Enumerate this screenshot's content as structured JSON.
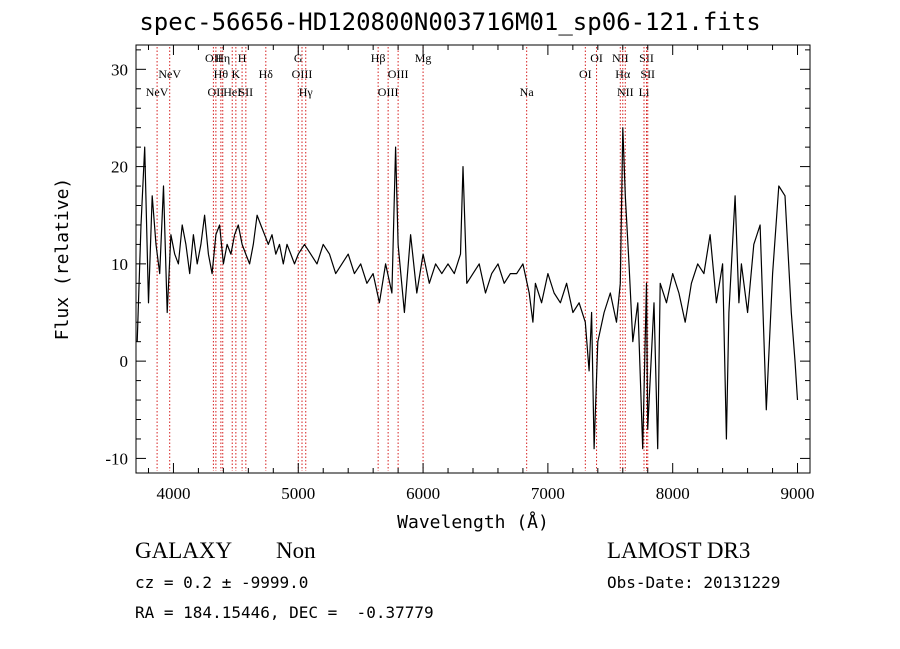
{
  "chart_data": {
    "type": "line",
    "title": "spec-56656-HD120800N003716M01_sp06-121.fits",
    "xlabel": "Wavelength (Å)",
    "ylabel": "Flux (relative)",
    "xlim": [
      3700,
      9100
    ],
    "ylim": [
      -11.5,
      32.5
    ],
    "xticks": [
      4000,
      5000,
      6000,
      7000,
      8000,
      9000
    ],
    "yticks": [
      -10,
      0,
      10,
      20,
      30
    ],
    "grid": false,
    "line_color": "#000000",
    "marker_color": "#d62020",
    "series": [
      {
        "name": "flux",
        "x": [
          3710,
          3740,
          3770,
          3800,
          3830,
          3860,
          3890,
          3920,
          3950,
          3980,
          4010,
          4040,
          4070,
          4100,
          4130,
          4160,
          4190,
          4220,
          4250,
          4280,
          4310,
          4340,
          4370,
          4400,
          4430,
          4460,
          4490,
          4520,
          4550,
          4580,
          4610,
          4640,
          4670,
          4700,
          4730,
          4760,
          4790,
          4820,
          4850,
          4880,
          4910,
          4940,
          4970,
          5000,
          5050,
          5100,
          5150,
          5200,
          5250,
          5300,
          5350,
          5400,
          5450,
          5500,
          5550,
          5600,
          5650,
          5700,
          5750,
          5780,
          5800,
          5850,
          5900,
          5950,
          6000,
          6050,
          6100,
          6150,
          6200,
          6250,
          6300,
          6320,
          6350,
          6400,
          6450,
          6500,
          6550,
          6600,
          6650,
          6700,
          6750,
          6800,
          6850,
          6880,
          6900,
          6950,
          7000,
          7050,
          7100,
          7150,
          7200,
          7250,
          7300,
          7330,
          7350,
          7370,
          7400,
          7450,
          7500,
          7550,
          7580,
          7600,
          7620,
          7650,
          7680,
          7720,
          7760,
          7790,
          7800,
          7850,
          7880,
          7900,
          7950,
          8000,
          8050,
          8100,
          8150,
          8200,
          8250,
          8300,
          8350,
          8400,
          8430,
          8450,
          8500,
          8530,
          8550,
          8600,
          8650,
          8700,
          8750,
          8800,
          8850,
          8900,
          8950,
          8980,
          9000
        ],
        "y": [
          2,
          14,
          22,
          6,
          17,
          12,
          9,
          18,
          5,
          13,
          11,
          10,
          14,
          12,
          9,
          13,
          10,
          12,
          15,
          11,
          9,
          13,
          14,
          10,
          12,
          11,
          13,
          14,
          12,
          11,
          10,
          12,
          15,
          14,
          13,
          12,
          13,
          11,
          12,
          10,
          12,
          11,
          10,
          11,
          12,
          11,
          10,
          12,
          11,
          9,
          10,
          11,
          9,
          10,
          8,
          9,
          6,
          10,
          7,
          22,
          12,
          5,
          13,
          7,
          11,
          8,
          10,
          9,
          10,
          9,
          11,
          20,
          8,
          9,
          10,
          7,
          9,
          10,
          8,
          9,
          9,
          10,
          7,
          4,
          8,
          6,
          9,
          7,
          6,
          8,
          5,
          6,
          4,
          -1,
          5,
          -9,
          2,
          5,
          7,
          4,
          8,
          24,
          17,
          10,
          2,
          6,
          -9,
          8,
          -7,
          6,
          -9,
          8,
          6,
          9,
          7,
          4,
          8,
          10,
          9,
          13,
          6,
          10,
          -8,
          5,
          17,
          6,
          10,
          5,
          12,
          14,
          -5,
          9,
          18,
          17,
          5,
          0,
          -4
        ]
      }
    ],
    "line_markers": [
      {
        "label": "NeV",
        "wavelength": 3869,
        "row": 3
      },
      {
        "label": "NeV",
        "wavelength": 3970,
        "row": 2
      },
      {
        "label": "OII",
        "wavelength": 4320,
        "row": 1
      },
      {
        "label": "OII",
        "wavelength": 4340,
        "row": 3
      },
      {
        "label": "Hθ",
        "wavelength": 4380,
        "row": 2
      },
      {
        "label": "Hη",
        "wavelength": 4395,
        "row": 1
      },
      {
        "label": "HeI",
        "wavelength": 4471,
        "row": 3
      },
      {
        "label": "K",
        "wavelength": 4500,
        "row": 2
      },
      {
        "label": "H",
        "wavelength": 4550,
        "row": 1
      },
      {
        "label": "SII",
        "wavelength": 4580,
        "row": 3
      },
      {
        "label": "Hδ",
        "wavelength": 4740,
        "row": 2
      },
      {
        "label": "G",
        "wavelength": 5000,
        "row": 1
      },
      {
        "label": "OIII",
        "wavelength": 5030,
        "row": 2
      },
      {
        "label": "Hγ",
        "wavelength": 5060,
        "row": 3
      },
      {
        "label": "Hβ",
        "wavelength": 5640,
        "row": 1
      },
      {
        "label": "OIII",
        "wavelength": 5720,
        "row": 3
      },
      {
        "label": "OIII",
        "wavelength": 5800,
        "row": 2
      },
      {
        "label": "Mg",
        "wavelength": 6000,
        "row": 1
      },
      {
        "label": "Na",
        "wavelength": 6830,
        "row": 3
      },
      {
        "label": "OI",
        "wavelength": 7300,
        "row": 2
      },
      {
        "label": "OI",
        "wavelength": 7390,
        "row": 1
      },
      {
        "label": "NII",
        "wavelength": 7580,
        "row": 1
      },
      {
        "label": "Hα",
        "wavelength": 7600,
        "row": 2
      },
      {
        "label": "NII",
        "wavelength": 7620,
        "row": 3
      },
      {
        "label": "SII",
        "wavelength": 7790,
        "row": 1
      },
      {
        "label": "SII",
        "wavelength": 7800,
        "row": 2
      },
      {
        "label": "Li",
        "wavelength": 7770,
        "row": 3
      }
    ]
  },
  "info": {
    "object_class": "GALAXY",
    "subclass": "Non",
    "survey": "LAMOST DR3",
    "cz": "cz = 0.2 ± -9999.0",
    "obs_date": "Obs-Date: 20131229",
    "radec": "RA = 184.15446, DEC =  -0.37779"
  }
}
